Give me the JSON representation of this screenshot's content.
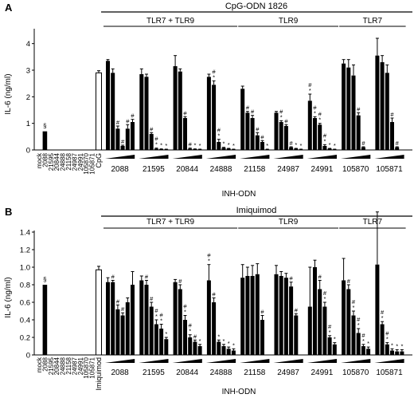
{
  "chart_data": [
    {
      "panel": "A",
      "type": "bar",
      "header": "CpG-ODN 1826",
      "ylabel": "IL-6 (ng/ml)",
      "xlabel": "INH-ODN",
      "ylim": [
        0,
        4.5
      ],
      "yticks": [
        "0",
        "1",
        "2",
        "3",
        "4"
      ],
      "groups": [
        {
          "label": "TLR7 + TLR9"
        },
        {
          "label": "TLR9"
        },
        {
          "label": "TLR7"
        }
      ],
      "control_labels": [
        "mock",
        "2088",
        "21595",
        "20844",
        "24888",
        "21158",
        "24987",
        "24991",
        "105870",
        "105871"
      ],
      "control_values": [
        0,
        0.7,
        0,
        0,
        0,
        0,
        0,
        0,
        0,
        0
      ],
      "control_marker": "§",
      "stimulus_label": "CpG",
      "stimulus_value": 2.9,
      "inhibitors": [
        {
          "name": "2088",
          "values": [
            3.35,
            2.9,
            0.8,
            0.15,
            0.8,
            1.05
          ],
          "marks": [
            "",
            "",
            "#",
            "#",
            "#",
            "#"
          ]
        },
        {
          "name": "21595",
          "values": [
            2.85,
            2.75,
            0.6,
            0.05,
            0.03,
            0.02
          ],
          "marks": [
            "",
            "",
            "#",
            "#\n*",
            "*",
            "*"
          ]
        },
        {
          "name": "20844",
          "values": [
            3.15,
            2.95,
            1.2,
            0.05,
            0.03,
            0.02
          ],
          "marks": [
            "",
            "",
            "#",
            "#",
            "*",
            "*"
          ]
        },
        {
          "name": "24888",
          "values": [
            2.75,
            2.45,
            0.3,
            0.08,
            0.05,
            0.02
          ],
          "marks": [
            "",
            "#\n*",
            "#\n*",
            "*",
            "*",
            "*"
          ]
        },
        {
          "name": "21158",
          "values": [
            2.3,
            1.4,
            1.2,
            0.55,
            0.3,
            0.02
          ],
          "marks": [
            "",
            "#",
            "#",
            "#",
            "#",
            "*"
          ]
        },
        {
          "name": "24987",
          "values": [
            1.4,
            1.05,
            0.9,
            0.1,
            0.05,
            0.02
          ],
          "marks": [
            "",
            "#\n*",
            "#",
            "#",
            "*",
            "*"
          ]
        },
        {
          "name": "24991",
          "values": [
            1.85,
            1.2,
            0.95,
            0.15,
            0.05,
            0.02
          ],
          "marks": [
            "#\n*",
            "#\n*",
            "#\n*",
            "#\n*",
            "*",
            "*"
          ]
        },
        {
          "name": "105870",
          "values": [
            3.25,
            3.1,
            2.8,
            1.3,
            0.1,
            0
          ],
          "marks": [
            "",
            "",
            "",
            "#",
            "#",
            ""
          ]
        },
        {
          "name": "105871",
          "values": [
            3.55,
            3.3,
            2.9,
            1.05,
            0.1,
            0
          ],
          "marks": [
            "",
            "",
            "",
            "#",
            "#",
            ""
          ]
        }
      ],
      "errors": [
        [
          0.05,
          0.15,
          0.1,
          0.03,
          0.15,
          0.1
        ],
        [
          0.2,
          0.1,
          0.05,
          0.02,
          0.01,
          0.01
        ],
        [
          0.4,
          0.1,
          0.05,
          0.02,
          0.01,
          0.01
        ],
        [
          0.1,
          0.15,
          0.1,
          0.02,
          0.01,
          0.01
        ],
        [
          0.1,
          0.05,
          0.1,
          0.1,
          0.05,
          0.01
        ],
        [
          0.05,
          0.05,
          0.05,
          0.02,
          0.01,
          0.01
        ],
        [
          0.25,
          0.05,
          0.05,
          0.05,
          0.01,
          0.01
        ],
        [
          0.15,
          0.3,
          0.4,
          0.1,
          0.02,
          0
        ],
        [
          0.65,
          0.25,
          0.3,
          0.15,
          0.02,
          0
        ]
      ],
      "stimulus_error": 0.08
    },
    {
      "panel": "B",
      "type": "bar",
      "header": "Imiquimod",
      "ylabel": "IL-6 (ng/ml)",
      "xlabel": "INH-ODN",
      "ylim": [
        0,
        1.4
      ],
      "yticks": [
        "0",
        "0.2",
        "0.4",
        "0.6",
        "0.8",
        "1.0",
        "1.2",
        "1.4"
      ],
      "groups": [
        {
          "label": "TLR7 + TLR9"
        },
        {
          "label": "TLR9"
        },
        {
          "label": "TLR7"
        }
      ],
      "control_labels": [
        "mock",
        "2088",
        "21595",
        "20844",
        "24888",
        "21158",
        "24987",
        "24991",
        "105870",
        "105871"
      ],
      "control_values": [
        0,
        0.8,
        0,
        0,
        0,
        0,
        0,
        0,
        0,
        0
      ],
      "control_marker": "§",
      "stimulus_label": "Imiquimod",
      "stimulus_value": 0.97,
      "inhibitors": [
        {
          "name": "2088",
          "values": [
            0.83,
            0.83,
            0.52,
            0.45,
            0.6,
            0.8
          ],
          "marks": [
            "",
            "#",
            "#",
            "#",
            "",
            ""
          ]
        },
        {
          "name": "21595",
          "values": [
            0.85,
            0.8,
            0.55,
            0.35,
            0.3,
            0.18
          ],
          "marks": [
            "",
            "#",
            "#",
            "#\n*",
            "#\n*",
            "*"
          ]
        },
        {
          "name": "20844",
          "values": [
            0.83,
            0.75,
            0.4,
            0.2,
            0.15,
            0.1
          ],
          "marks": [
            "",
            "#",
            "#\n*",
            "#\n*",
            "#",
            "*"
          ]
        },
        {
          "name": "24888",
          "values": [
            0.85,
            0.6,
            0.15,
            0.1,
            0.07,
            0.05
          ],
          "marks": [
            "#\n*",
            "#",
            "*",
            "*",
            "*",
            "*"
          ]
        },
        {
          "name": "21158",
          "values": [
            0.88,
            0.9,
            0.9,
            0.92,
            0.4,
            0
          ],
          "marks": [
            "",
            "",
            "",
            "",
            "#",
            ""
          ]
        },
        {
          "name": "24987",
          "values": [
            0.92,
            0.9,
            0.88,
            0.78,
            0.45,
            0
          ],
          "marks": [
            "",
            "",
            "",
            "#",
            "#",
            ""
          ]
        },
        {
          "name": "24991",
          "values": [
            0.55,
            1.0,
            0.75,
            0.55,
            0.2,
            0.12
          ],
          "marks": [
            "",
            "",
            "#",
            "#\n*",
            "#\n*",
            "*"
          ]
        },
        {
          "name": "105870",
          "values": [
            0.85,
            0.75,
            0.45,
            0.25,
            0.1,
            0.07
          ],
          "marks": [
            "",
            "#",
            "#\n*",
            "#\n*",
            "#\n*",
            "*"
          ]
        },
        {
          "name": "105871",
          "values": [
            1.03,
            0.35,
            0.12,
            0.05,
            0.04,
            0.04
          ],
          "marks": [
            "",
            "#\n*",
            "#\n*",
            "*",
            "*",
            "*"
          ]
        }
      ],
      "errors": [
        [
          0.05,
          0.02,
          0.05,
          0.03,
          0.05,
          0.15
        ],
        [
          0.05,
          0.05,
          0.05,
          0.05,
          0.05,
          0.02
        ],
        [
          0.03,
          0.05,
          0.05,
          0.03,
          0.02,
          0.02
        ],
        [
          0.18,
          0.05,
          0.02,
          0.02,
          0.02,
          0.02
        ],
        [
          0.15,
          0.1,
          0.12,
          0.12,
          0.05,
          0
        ],
        [
          0.1,
          0.05,
          0.05,
          0.05,
          0.02,
          0
        ],
        [
          0.45,
          0.08,
          0.1,
          0.05,
          0.02,
          0.02
        ],
        [
          0.25,
          0.05,
          0.05,
          0.05,
          0.02,
          0.02
        ],
        [
          0.6,
          0.03,
          0.02,
          0.02,
          0.02,
          0.02
        ]
      ],
      "stimulus_error": 0.04
    }
  ]
}
